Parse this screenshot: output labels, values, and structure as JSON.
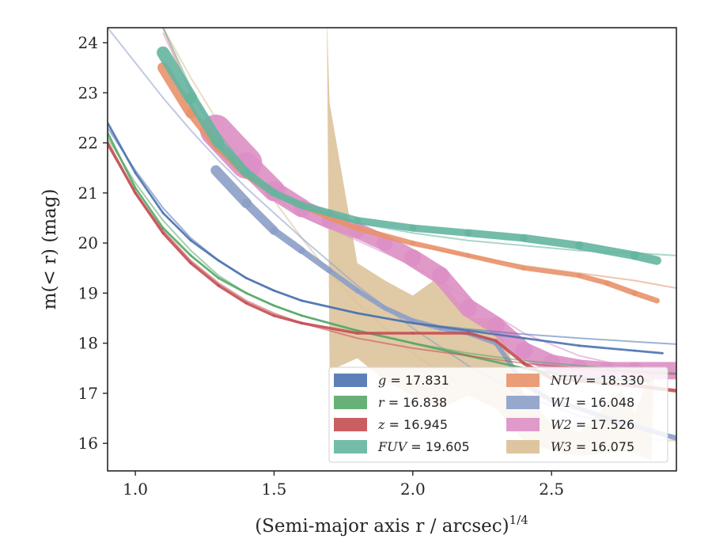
{
  "chart_data": {
    "type": "line",
    "xlabel": "(Semi-major axis r / arcsec)",
    "xlabel_superscript": "1/4",
    "ylabel": "m(< r) (mag)",
    "xlim": [
      0.9,
      2.95
    ],
    "ylim": [
      24.3,
      15.45
    ],
    "y_inverted": true,
    "x_ticks": [
      1.0,
      1.5,
      2.0,
      2.5
    ],
    "x_tick_labels": [
      "1.0",
      "1.5",
      "2.0",
      "2.5"
    ],
    "y_ticks": [
      16,
      17,
      18,
      19,
      20,
      21,
      22,
      23,
      24
    ],
    "y_tick_labels": [
      "16",
      "17",
      "18",
      "19",
      "20",
      "21",
      "22",
      "23",
      "24"
    ],
    "grid": false,
    "legend_position": "lower-right",
    "legend_columns": 2,
    "series": [
      {
        "band": "g",
        "legend_label": "g = 17.831",
        "color": "#4c72b0",
        "x": [
          0.9,
          1.0,
          1.1,
          1.2,
          1.3,
          1.4,
          1.5,
          1.6,
          1.8,
          2.0,
          2.2,
          2.4,
          2.6,
          2.8,
          2.9
        ],
        "y": [
          22.4,
          21.4,
          20.6,
          20.05,
          19.65,
          19.3,
          19.05,
          18.85,
          18.6,
          18.4,
          18.25,
          18.1,
          17.95,
          17.85,
          17.8
        ],
        "width": [
          2.8,
          2.8,
          2.8,
          2.8,
          2.8,
          2.8,
          2.8,
          2.8,
          2.8,
          2.8,
          2.8,
          2.8,
          2.8,
          2.8,
          2.8
        ],
        "fit_x": [
          0.9,
          1.0,
          1.1,
          1.2,
          1.3,
          1.4,
          1.5,
          1.6,
          1.8,
          2.0,
          2.2,
          2.4,
          2.6,
          2.8,
          2.95
        ],
        "fit_y": [
          22.3,
          21.45,
          20.7,
          20.1,
          19.65,
          19.3,
          19.05,
          18.85,
          18.6,
          18.4,
          18.28,
          18.18,
          18.1,
          18.03,
          17.98
        ]
      },
      {
        "band": "r",
        "legend_label": "r = 16.838",
        "color": "#55a868",
        "x": [
          0.9,
          1.0,
          1.1,
          1.2,
          1.3,
          1.4,
          1.5,
          1.6,
          1.8,
          2.0,
          2.2,
          2.4,
          2.6,
          2.85
        ],
        "y": [
          22.2,
          21.1,
          20.3,
          19.75,
          19.3,
          19.0,
          18.75,
          18.55,
          18.25,
          18.0,
          17.75,
          17.5,
          17.3,
          17.25
        ],
        "width": [
          2.8,
          2.8,
          2.8,
          2.8,
          2.8,
          2.8,
          2.8,
          2.8,
          2.8,
          2.8,
          2.8,
          2.8,
          3.5,
          3.5
        ],
        "fit_x": [
          0.9,
          1.0,
          1.1,
          1.2,
          1.3,
          1.4,
          1.5,
          1.6,
          1.8,
          2.0,
          2.2,
          2.4,
          2.6,
          2.8,
          2.95
        ],
        "fit_y": [
          22.1,
          21.2,
          20.45,
          19.85,
          19.35,
          19.0,
          18.75,
          18.55,
          18.25,
          18.0,
          17.8,
          17.65,
          17.55,
          17.45,
          17.4
        ]
      },
      {
        "band": "z",
        "legend_label": "z = 16.945",
        "color": "#c44e52",
        "x": [
          0.9,
          1.0,
          1.1,
          1.2,
          1.3,
          1.4,
          1.5,
          1.6,
          1.8,
          2.0,
          2.2,
          2.3,
          2.4,
          2.5,
          2.6,
          2.7,
          2.8,
          2.95
        ],
        "y": [
          22.0,
          21.0,
          20.2,
          19.6,
          19.15,
          18.8,
          18.55,
          18.4,
          18.2,
          18.2,
          18.2,
          18.05,
          17.6,
          17.3,
          17.25,
          17.2,
          17.15,
          17.05
        ],
        "width": [
          3.5,
          3.5,
          3.5,
          3.5,
          3.5,
          3.5,
          3.5,
          3.5,
          3.5,
          3.5,
          3.5,
          3.5,
          4.5,
          4.5,
          4.5,
          4.5,
          4.5,
          4.5
        ],
        "fit_x": [
          0.9,
          1.0,
          1.1,
          1.2,
          1.3,
          1.4,
          1.5,
          1.6,
          1.8,
          2.0,
          2.2,
          2.4,
          2.6,
          2.8,
          2.95
        ],
        "fit_y": [
          21.95,
          21.0,
          20.25,
          19.65,
          19.2,
          18.85,
          18.6,
          18.4,
          18.1,
          17.9,
          17.75,
          17.6,
          17.5,
          17.42,
          17.38
        ]
      },
      {
        "band": "FUV",
        "legend_label": "FUV = 19.605",
        "color": "#64b5a0",
        "x": [
          1.1,
          1.2,
          1.3,
          1.4,
          1.5,
          1.6,
          1.7,
          1.8,
          2.0,
          2.2,
          2.4,
          2.6,
          2.8,
          2.88
        ],
        "y": [
          23.8,
          22.9,
          22.0,
          21.4,
          21.0,
          20.75,
          20.6,
          20.45,
          20.3,
          20.2,
          20.1,
          19.95,
          19.75,
          19.65
        ],
        "width": [
          16,
          16,
          12,
          10,
          9,
          9,
          9,
          9,
          9,
          9,
          10,
          10,
          11,
          11
        ],
        "fit_x": [
          1.1,
          1.2,
          1.3,
          1.4,
          1.5,
          1.6,
          1.8,
          2.0,
          2.2,
          2.4,
          2.6,
          2.8,
          2.95
        ],
        "fit_y": [
          24.3,
          23.1,
          22.2,
          21.5,
          21.05,
          20.75,
          20.4,
          20.2,
          20.05,
          19.95,
          19.85,
          19.8,
          19.75
        ]
      },
      {
        "band": "NUV",
        "legend_label": "NUV = 18.330",
        "color": "#e8926a",
        "x": [
          1.1,
          1.2,
          1.3,
          1.4,
          1.5,
          1.6,
          1.7,
          1.8,
          2.0,
          2.2,
          2.4,
          2.6,
          2.7,
          2.8,
          2.88
        ],
        "y": [
          23.5,
          22.6,
          21.9,
          21.35,
          21.0,
          20.75,
          20.5,
          20.3,
          20.0,
          19.75,
          19.5,
          19.35,
          19.2,
          19.0,
          18.85
        ],
        "width": [
          14,
          14,
          9,
          8,
          7,
          6,
          6,
          6,
          6,
          6,
          6,
          6,
          7,
          7,
          7
        ],
        "fit_x": [
          1.1,
          1.2,
          1.3,
          1.4,
          1.5,
          1.6,
          1.8,
          2.0,
          2.2,
          2.4,
          2.6,
          2.8,
          2.95
        ],
        "fit_y": [
          24.3,
          23.0,
          22.1,
          21.45,
          21.0,
          20.7,
          20.25,
          19.95,
          19.75,
          19.55,
          19.4,
          19.25,
          19.1
        ]
      },
      {
        "band": "W1",
        "legend_label": "W1 = 16.048",
        "color": "#8c9fc8",
        "x": [
          1.29,
          1.4,
          1.5,
          1.6,
          1.7,
          1.8,
          1.9,
          2.0,
          2.1,
          2.2,
          2.3,
          2.4,
          2.5,
          2.6,
          2.7,
          2.8,
          2.95
        ],
        "y": [
          21.45,
          20.8,
          20.25,
          19.85,
          19.45,
          19.05,
          18.7,
          18.45,
          18.3,
          18.2,
          18.0,
          17.2,
          16.85,
          16.7,
          16.5,
          16.35,
          16.1
        ],
        "width": [
          14,
          12,
          10,
          8,
          7,
          6,
          6,
          6,
          6,
          6,
          6,
          6,
          6,
          6,
          6,
          6,
          6
        ],
        "fit_x": [
          0.9,
          1.0,
          1.1,
          1.2,
          1.3,
          1.4,
          1.5,
          1.6,
          1.8,
          2.0,
          2.2,
          2.4,
          2.6,
          2.8,
          2.95
        ],
        "fit_y": [
          24.3,
          23.6,
          22.9,
          22.25,
          21.65,
          21.1,
          20.6,
          20.1,
          19.15,
          18.3,
          17.55,
          16.95,
          16.55,
          16.3,
          16.15
        ]
      },
      {
        "band": "W2",
        "legend_label": "W2 = 17.526",
        "color": "#dd8fc4",
        "x": [
          1.29,
          1.4,
          1.5,
          1.6,
          1.7,
          1.8,
          1.9,
          2.0,
          2.1,
          2.2,
          2.3,
          2.4,
          2.5,
          2.6,
          2.7,
          2.8,
          2.95
        ],
        "y": [
          22.25,
          21.6,
          21.05,
          20.7,
          20.45,
          20.25,
          20.0,
          19.7,
          19.35,
          18.7,
          18.35,
          17.85,
          17.6,
          17.5,
          17.45,
          17.45,
          17.45
        ],
        "width": [
          50,
          30,
          25,
          22,
          20,
          20,
          20,
          22,
          22,
          22,
          22,
          22,
          22,
          22,
          22,
          22,
          22
        ],
        "fit_x": [
          1.1,
          1.2,
          1.3,
          1.4,
          1.5,
          1.6,
          1.8,
          2.0,
          2.2,
          2.4,
          2.6,
          2.8,
          2.95
        ],
        "fit_y": [
          24.2,
          23.0,
          22.1,
          21.4,
          20.9,
          20.55,
          20.05,
          19.55,
          18.9,
          18.2,
          17.75,
          17.5,
          17.4
        ]
      },
      {
        "band": "W3",
        "legend_label": "W3 = 16.075",
        "color": "#dbbf95",
        "band_x": [
          1.69,
          1.7,
          1.8,
          1.9,
          2.0,
          2.1,
          2.2,
          2.3,
          2.4,
          2.5,
          2.6,
          2.7,
          2.75,
          2.8,
          2.86,
          2.87
        ],
        "band_upper": [
          24.6,
          17.45,
          17.7,
          17.25,
          16.95,
          16.7,
          16.95,
          16.7,
          16.05,
          15.85,
          15.75,
          15.8,
          15.85,
          15.8,
          15.65,
          17.5
        ],
        "band_lower": [
          24.6,
          22.8,
          19.6,
          19.25,
          18.95,
          19.35,
          18.5,
          18.5,
          17.0,
          16.4,
          16.2,
          16.8,
          17.05,
          16.6,
          17.45,
          17.5
        ],
        "fit_x": [
          1.1,
          1.2,
          1.3,
          1.4,
          1.5,
          1.6,
          1.7,
          1.8,
          2.0,
          2.2,
          2.4,
          2.6,
          2.8,
          2.95
        ],
        "fit_y": [
          24.3,
          23.3,
          22.4,
          21.6,
          20.85,
          20.1,
          19.4,
          18.8,
          17.8,
          17.05,
          16.5,
          16.2,
          16.1,
          16.05
        ]
      }
    ],
    "legend": [
      {
        "band": "g",
        "value": "17.831",
        "color": "#4c72b0"
      },
      {
        "band": "r",
        "value": "16.838",
        "color": "#55a868"
      },
      {
        "band": "z",
        "value": "16.945",
        "color": "#c44e52"
      },
      {
        "band": "FUV",
        "value": "19.605",
        "color": "#64b5a0"
      },
      {
        "band": "NUV",
        "value": "18.330",
        "color": "#e8926a"
      },
      {
        "band": "W1",
        "value": "16.048",
        "color": "#8c9fc8"
      },
      {
        "band": "W2",
        "value": "17.526",
        "color": "#dd8fc4"
      },
      {
        "band": "W3",
        "value": "16.075",
        "color": "#dbbf95"
      }
    ]
  }
}
